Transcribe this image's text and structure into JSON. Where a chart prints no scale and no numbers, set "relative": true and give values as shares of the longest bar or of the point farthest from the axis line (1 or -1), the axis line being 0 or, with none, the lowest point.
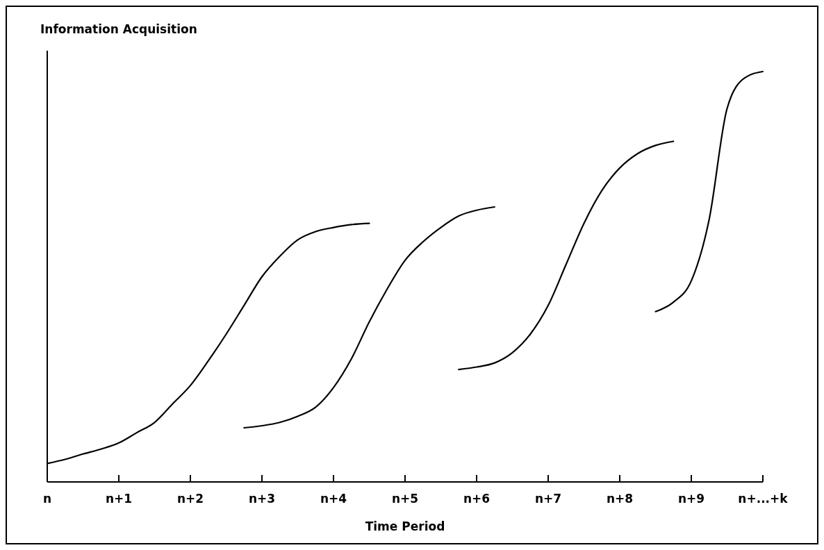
{
  "chart_data": {
    "type": "line",
    "relative": true,
    "ylabel": "Information Acquisition",
    "xlabel": "Time Period",
    "categories": [
      "n",
      null,
      null,
      null,
      "n+1",
      null,
      null,
      null,
      "n+2",
      null,
      null,
      null,
      "n+3",
      null,
      null,
      null,
      "n+4",
      null,
      null,
      null,
      "n+5",
      null,
      null,
      null,
      "n+6",
      null,
      null,
      null,
      "n+7",
      null,
      null,
      null,
      "n+8",
      null,
      null,
      null,
      "n+9",
      null,
      null,
      null,
      "n+...+k"
    ],
    "grid": false,
    "marker": "none",
    "line_style": "solid",
    "series": [
      {
        "color": "#000000",
        "values": [
          0.045,
          0.055,
          0.068,
          0.08,
          0.095,
          0.12,
          0.145,
          0.19,
          0.235,
          0.295,
          0.36,
          0.43,
          0.5,
          0.55,
          0.59,
          0.61,
          0.62,
          0.627,
          0.63,
          null,
          null,
          null,
          null,
          null,
          null,
          null,
          null,
          null,
          null,
          null,
          null,
          null,
          null,
          null,
          null,
          null,
          null,
          null,
          null,
          null,
          null
        ]
      },
      {
        "color": "#000000",
        "values": [
          null,
          null,
          null,
          null,
          null,
          null,
          null,
          null,
          null,
          null,
          null,
          0.132,
          0.137,
          0.145,
          0.16,
          0.182,
          0.23,
          0.3,
          0.39,
          0.47,
          0.54,
          0.585,
          0.62,
          0.648,
          0.662,
          0.67,
          null,
          null,
          null,
          null,
          null,
          null,
          null,
          null,
          null,
          null,
          null,
          null,
          null,
          null,
          null
        ]
      },
      {
        "color": "#000000",
        "values": [
          null,
          null,
          null,
          null,
          null,
          null,
          null,
          null,
          null,
          null,
          null,
          null,
          null,
          null,
          null,
          null,
          null,
          null,
          null,
          null,
          null,
          null,
          null,
          0.274,
          0.28,
          0.29,
          0.315,
          0.36,
          0.43,
          0.53,
          0.63,
          0.71,
          0.765,
          0.8,
          0.82,
          0.83,
          null,
          null,
          null,
          null,
          null
        ]
      },
      {
        "color": "#000000",
        "values": [
          null,
          null,
          null,
          null,
          null,
          null,
          null,
          null,
          null,
          null,
          null,
          null,
          null,
          null,
          null,
          null,
          null,
          null,
          null,
          null,
          null,
          null,
          null,
          null,
          null,
          null,
          null,
          null,
          null,
          null,
          null,
          null,
          null,
          null,
          0.415,
          0.438,
          0.49,
          0.64,
          0.91,
          0.985,
          1.0
        ]
      }
    ]
  }
}
